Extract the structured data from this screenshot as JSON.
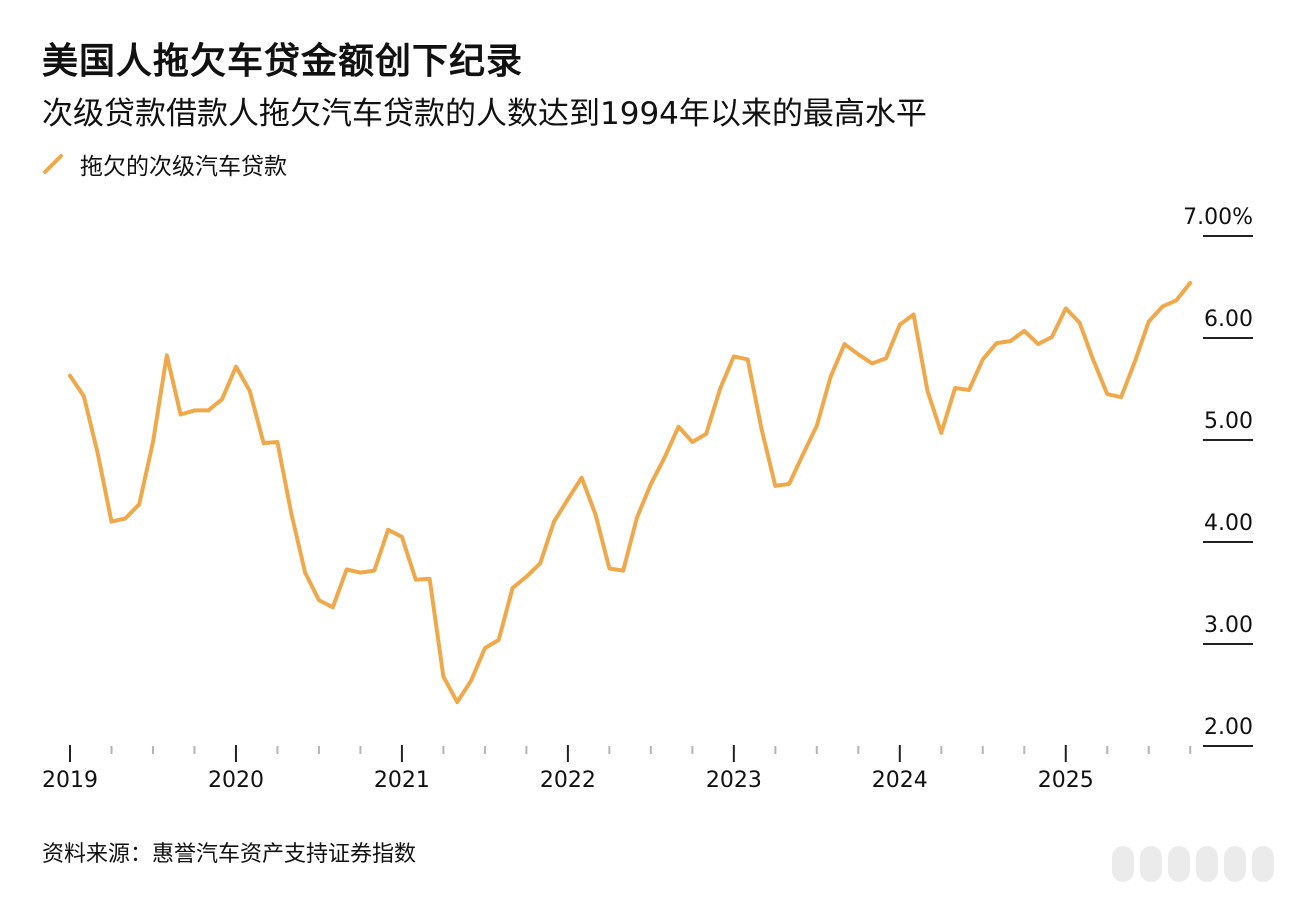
{
  "title": "美国人拖欠车贷金额创下纪录",
  "subtitle": "次级贷款借款人拖欠汽车贷款的人数达到1994年以来的最高水平",
  "source": "资料来源：惠誉汽车资产支持证券指数",
  "colors": {
    "line": "#F0A94A",
    "text": "#111111",
    "axis": "#222222"
  },
  "chart_data": {
    "type": "line",
    "title": "美国人拖欠车贷金额创下纪录",
    "subtitle": "次级贷款借款人拖欠汽车贷款的人数达到1994年以来的最高水平",
    "xlabel": "",
    "ylabel": "",
    "ylim": [
      2.0,
      7.0
    ],
    "x_start_year": 2019,
    "x_months": 82,
    "y_ticks": [
      {
        "value": 7.0,
        "label": "7.00%"
      },
      {
        "value": 6.0,
        "label": "6.00"
      },
      {
        "value": 5.0,
        "label": "5.00"
      },
      {
        "value": 4.0,
        "label": "4.00"
      },
      {
        "value": 3.0,
        "label": "3.00"
      },
      {
        "value": 2.0,
        "label": "2.00"
      }
    ],
    "x_ticks": [
      {
        "year": 2019,
        "label": "2019"
      },
      {
        "year": 2020,
        "label": "2020"
      },
      {
        "year": 2021,
        "label": "2021"
      },
      {
        "year": 2022,
        "label": "2022"
      },
      {
        "year": 2023,
        "label": "2023"
      },
      {
        "year": 2024,
        "label": "2024"
      },
      {
        "year": 2025,
        "label": "2025"
      }
    ],
    "series": [
      {
        "name": "拖欠的次级汽车贷款",
        "values": [
          5.63,
          5.43,
          4.87,
          4.2,
          4.23,
          4.37,
          4.98,
          5.83,
          5.25,
          5.29,
          5.29,
          5.4,
          5.72,
          5.48,
          4.97,
          4.98,
          4.28,
          3.7,
          3.43,
          3.36,
          3.73,
          3.7,
          3.72,
          4.12,
          4.05,
          3.63,
          3.64,
          2.68,
          2.43,
          2.64,
          2.96,
          3.04,
          3.55,
          3.66,
          3.79,
          4.2,
          4.42,
          4.63,
          4.27,
          3.74,
          3.72,
          4.24,
          4.57,
          4.83,
          5.13,
          4.98,
          5.06,
          5.5,
          5.82,
          5.79,
          5.11,
          4.55,
          4.57,
          4.86,
          5.14,
          5.62,
          5.94,
          5.84,
          5.75,
          5.8,
          6.13,
          6.23,
          5.48,
          5.07,
          5.51,
          5.49,
          5.79,
          5.95,
          5.97,
          6.07,
          5.94,
          6.01,
          6.29,
          6.15,
          5.78,
          5.45,
          5.42,
          5.77,
          6.16,
          6.31,
          6.37,
          6.54
        ]
      }
    ],
    "legend": [
      "拖欠的次级汽车贷款"
    ],
    "legend_position": "top-left",
    "grid": false
  }
}
